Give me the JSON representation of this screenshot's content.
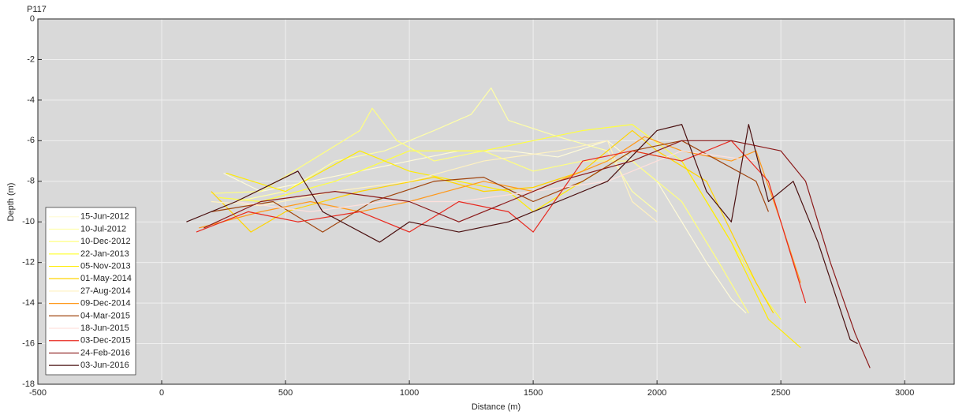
{
  "chart_data": {
    "type": "line",
    "title": "P117",
    "x_label": "Distance (m)",
    "y_label": "Depth (m)",
    "xlim": [
      -500,
      3200
    ],
    "ylim": [
      -18,
      0
    ],
    "xticks": [
      -500,
      0,
      500,
      1000,
      1500,
      2000,
      2500,
      3000
    ],
    "yticks": [
      -18,
      -16,
      -14,
      -12,
      -10,
      -8,
      -6,
      -4,
      -2,
      0
    ],
    "grid": true,
    "legend": "lower left",
    "series": [
      {
        "name": "15-Jun-2012",
        "color": "#fffbd8",
        "x": [
          250,
          400,
          600,
          800,
          1000,
          1200,
          1400,
          1600,
          1800,
          2000,
          2100,
          2200,
          2300,
          2360
        ],
        "values": [
          -7.6,
          -8.5,
          -8,
          -7.5,
          -7,
          -6.5,
          -6.5,
          -6.8,
          -6,
          -8,
          -10,
          -12,
          -13.8,
          -14.5
        ]
      },
      {
        "name": "10-Jul-2012",
        "color": "#ffffa8",
        "x": [
          300,
          500,
          700,
          900,
          1100,
          1250,
          1330,
          1400,
          1600,
          1800,
          1900,
          2000
        ],
        "values": [
          -9,
          -8.5,
          -7,
          -6.5,
          -5.5,
          -4.7,
          -3.4,
          -5,
          -5.8,
          -6.5,
          -8.5,
          -9.5
        ]
      },
      {
        "name": "10-Dec-2012",
        "color": "#ffff80",
        "x": [
          200,
          400,
          600,
          800,
          850,
          950,
          1100,
          1300,
          1500,
          1700,
          1900,
          2100,
          2250,
          2370
        ],
        "values": [
          -8.6,
          -8.5,
          -7,
          -5.5,
          -4.4,
          -6,
          -7,
          -6.5,
          -7.5,
          -7,
          -7,
          -9,
          -12,
          -14.5
        ]
      },
      {
        "name": "22-Jan-2013",
        "color": "#ffff40",
        "x": [
          230,
          400,
          700,
          1000,
          1300,
          1500,
          1700,
          1900,
          2100,
          2300,
          2450,
          2500
        ],
        "values": [
          -8.8,
          -9,
          -8,
          -6.5,
          -6.5,
          -6,
          -5.5,
          -5.2,
          -7,
          -11,
          -14,
          -14.8
        ]
      },
      {
        "name": "05-Nov-2013",
        "color": "#ffec00",
        "x": [
          260,
          500,
          800,
          1000,
          1200,
          1400,
          1500,
          1700,
          1900,
          2100,
          2300,
          2450,
          2580
        ],
        "values": [
          -7.6,
          -8.5,
          -6.5,
          -7.5,
          -8,
          -8.5,
          -9.5,
          -8,
          -6.5,
          -7,
          -11,
          -14.8,
          -16.2
        ]
      },
      {
        "name": "01-May-2014",
        "color": "#ffd400",
        "x": [
          200,
          360,
          500,
          800,
          1100,
          1300,
          1500,
          1700,
          1900,
          2000,
          2200,
          2400,
          2470
        ],
        "values": [
          -8.5,
          -10.5,
          -9.5,
          -8.5,
          -7.8,
          -8.5,
          -8.3,
          -7.5,
          -5.5,
          -6.5,
          -8,
          -13,
          -14.5
        ]
      },
      {
        "name": "27-Aug-2014",
        "color": "#fff2c0",
        "x": [
          200,
          400,
          700,
          1000,
          1300,
          1600,
          1800,
          1900,
          2000
        ],
        "values": [
          -9,
          -9.2,
          -8.5,
          -8,
          -7,
          -6.5,
          -6,
          -9,
          -10
        ]
      },
      {
        "name": "09-Dec-2014",
        "color": "#ff981a",
        "x": [
          150,
          400,
          600,
          800,
          1000,
          1300,
          1500,
          1800,
          1950,
          2100,
          2300,
          2400,
          2500,
          2580
        ],
        "values": [
          -10.3,
          -9.5,
          -9,
          -9.5,
          -9,
          -8,
          -8.5,
          -7,
          -5.8,
          -6.5,
          -7,
          -6.5,
          -10,
          -13
        ]
      },
      {
        "name": "04-Mar-2015",
        "color": "#a0450f",
        "x": [
          200,
          450,
          650,
          850,
          1100,
          1300,
          1500,
          1700,
          1900,
          2100,
          2250,
          2400,
          2450
        ],
        "values": [
          -9.5,
          -9,
          -10.5,
          -9,
          -8,
          -7.8,
          -9,
          -8,
          -6.5,
          -6,
          -7,
          -8,
          -9.5
        ]
      },
      {
        "name": "18-Jun-2015",
        "color": "#ffe0dc",
        "x": [
          300,
          600,
          900,
          1200,
          1500,
          1800,
          2100,
          2400
        ],
        "values": [
          -9,
          -9.5,
          -9,
          -9,
          -8.5,
          -8,
          -6.5,
          -7
        ]
      },
      {
        "name": "03-Dec-2015",
        "color": "#e8281e",
        "x": [
          140,
          350,
          550,
          800,
          1000,
          1200,
          1400,
          1500,
          1700,
          1900,
          2100,
          2300,
          2450,
          2550,
          2600
        ],
        "values": [
          -10.5,
          -9.5,
          -10,
          -9.5,
          -10.5,
          -9,
          -9.5,
          -10.5,
          -7,
          -6.5,
          -7,
          -6,
          -8,
          -12,
          -14
        ]
      },
      {
        "name": "24-Feb-2016",
        "color": "#8b1a1a",
        "x": [
          170,
          400,
          700,
          1000,
          1200,
          1400,
          1600,
          1900,
          2100,
          2300,
          2500,
          2600,
          2700,
          2800,
          2860
        ],
        "values": [
          -10.3,
          -9,
          -8.5,
          -9,
          -10,
          -9,
          -8,
          -7,
          -6,
          -6,
          -6.5,
          -8,
          -12,
          -15.5,
          -17.2
        ]
      },
      {
        "name": "03-Jun-2016",
        "color": "#4a1010",
        "x": [
          100,
          300,
          550,
          650,
          880,
          1000,
          1200,
          1400,
          1600,
          1800,
          2000,
          2100,
          2200,
          2300,
          2370,
          2450,
          2550,
          2650,
          2780,
          2810
        ],
        "values": [
          -10,
          -9,
          -7.5,
          -9.5,
          -11,
          -10,
          -10.5,
          -10,
          -9,
          -8,
          -5.5,
          -5.2,
          -8.5,
          -10,
          -5.2,
          -9,
          -8,
          -11,
          -15.8,
          -16
        ]
      }
    ]
  }
}
